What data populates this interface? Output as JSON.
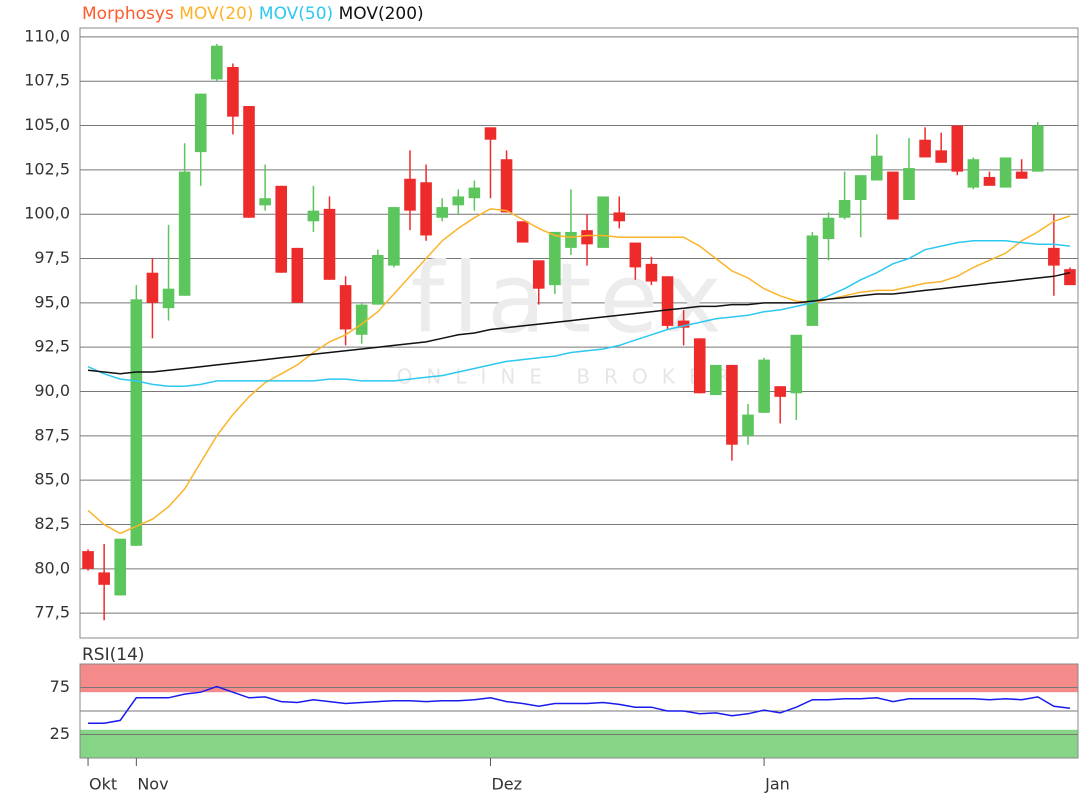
{
  "chart_data": [
    {
      "type": "candlestick",
      "watermark": [
        "flatex",
        "ONLINE BROKER"
      ],
      "ohlc": {
        "name": "Morphosys",
        "color": "#ff5b2d",
        "up_color": "#5cc55c",
        "down_color": "#ee2b2b",
        "open": [
          81.0,
          79.8,
          78.5,
          81.3,
          96.7,
          94.7,
          95.4,
          103.5,
          107.6,
          108.3,
          106.1,
          100.5,
          101.6,
          98.1,
          99.6,
          100.3,
          96.0,
          93.2,
          94.9,
          97.1,
          102.0,
          101.8,
          99.8,
          100.5,
          100.9,
          104.9,
          103.1,
          99.6,
          97.4,
          96.0,
          98.1,
          99.1,
          98.1,
          100.1,
          98.4,
          97.2,
          96.5,
          94.0,
          93.0,
          89.8,
          91.5,
          87.5,
          88.8,
          90.3,
          89.9,
          93.7,
          98.6,
          99.8,
          100.8,
          101.9,
          102.4,
          100.8,
          104.2,
          103.6,
          105.0,
          101.5,
          102.1,
          101.5,
          102.4,
          102.4,
          98.1,
          96.9
        ],
        "high": [
          81.1,
          81.4,
          81.7,
          96.0,
          97.5,
          99.4,
          104.0,
          106.8,
          109.6,
          108.5,
          106.1,
          102.8,
          101.6,
          98.1,
          101.6,
          101.0,
          96.5,
          95.0,
          98.0,
          100.4,
          103.6,
          102.8,
          100.9,
          101.4,
          101.9,
          104.9,
          103.6,
          99.6,
          97.4,
          99.0,
          101.4,
          100.0,
          101.0,
          101.0,
          98.4,
          97.6,
          96.5,
          94.6,
          93.0,
          91.5,
          91.5,
          89.3,
          91.9,
          90.3,
          93.2,
          99.0,
          100.1,
          102.4,
          102.2,
          104.5,
          102.4,
          104.3,
          104.9,
          104.6,
          105.0,
          103.2,
          102.4,
          103.2,
          103.1,
          105.2,
          100.0,
          97.0
        ],
        "low": [
          79.9,
          77.1,
          78.5,
          81.3,
          93.0,
          94.0,
          95.4,
          101.6,
          107.5,
          104.5,
          99.8,
          100.2,
          96.7,
          95.0,
          99.0,
          96.3,
          92.6,
          92.7,
          94.9,
          97.0,
          99.1,
          98.5,
          99.6,
          100.0,
          100.2,
          100.9,
          100.1,
          98.4,
          94.9,
          95.5,
          97.7,
          97.1,
          98.1,
          99.2,
          96.3,
          96.0,
          93.5,
          92.6,
          89.9,
          89.8,
          86.1,
          87.0,
          88.8,
          88.2,
          88.4,
          93.7,
          97.4,
          99.7,
          98.7,
          101.9,
          99.7,
          100.8,
          103.2,
          102.9,
          102.2,
          101.4,
          101.6,
          101.5,
          102.0,
          102.4,
          95.4,
          96.0
        ],
        "close": [
          80.0,
          79.1,
          81.7,
          95.2,
          95.0,
          95.8,
          102.4,
          106.8,
          109.5,
          105.5,
          99.8,
          100.9,
          96.7,
          95.0,
          100.2,
          96.3,
          93.5,
          94.9,
          97.7,
          100.4,
          100.2,
          98.8,
          100.4,
          101.0,
          101.5,
          104.2,
          100.1,
          98.4,
          95.8,
          99.0,
          99.0,
          98.3,
          101.0,
          99.6,
          97.0,
          96.2,
          93.7,
          93.6,
          89.9,
          91.5,
          87.0,
          88.7,
          91.8,
          89.7,
          93.2,
          98.8,
          99.8,
          100.8,
          102.2,
          103.3,
          99.7,
          102.6,
          103.2,
          102.9,
          102.4,
          103.1,
          101.6,
          103.2,
          102.0,
          105.0,
          97.1,
          96.0
        ]
      },
      "series": [
        {
          "name": "MOV(20)",
          "color": "#fbb42a",
          "values": [
            83.3,
            82.5,
            82.0,
            82.4,
            82.8,
            83.5,
            84.5,
            86.0,
            87.5,
            88.7,
            89.7,
            90.5,
            91.0,
            91.5,
            92.2,
            92.8,
            93.2,
            93.8,
            94.5,
            95.5,
            96.5,
            97.5,
            98.5,
            99.2,
            99.8,
            100.3,
            100.2,
            99.7,
            99.2,
            98.8,
            98.7,
            98.8,
            98.8,
            98.7,
            98.7,
            98.7,
            98.7,
            98.7,
            98.2,
            97.5,
            96.8,
            96.4,
            95.8,
            95.4,
            95.1,
            95.0,
            95.2,
            95.4,
            95.6,
            95.7,
            95.7,
            95.9,
            96.1,
            96.2,
            96.5,
            97.0,
            97.4,
            97.8,
            98.5,
            99.0,
            99.6,
            99.9
          ]
        },
        {
          "name": "MOV(50)",
          "color": "#2cc8f0",
          "values": [
            91.4,
            91.0,
            90.7,
            90.6,
            90.4,
            90.3,
            90.3,
            90.4,
            90.6,
            90.6,
            90.6,
            90.6,
            90.6,
            90.6,
            90.6,
            90.7,
            90.7,
            90.6,
            90.6,
            90.6,
            90.7,
            90.8,
            90.9,
            91.1,
            91.3,
            91.5,
            91.7,
            91.8,
            91.9,
            92.0,
            92.2,
            92.3,
            92.4,
            92.6,
            92.9,
            93.2,
            93.5,
            93.7,
            93.9,
            94.1,
            94.2,
            94.3,
            94.5,
            94.6,
            94.8,
            95.0,
            95.4,
            95.8,
            96.3,
            96.7,
            97.2,
            97.5,
            98.0,
            98.2,
            98.4,
            98.5,
            98.5,
            98.5,
            98.4,
            98.3,
            98.3,
            98.2
          ]
        },
        {
          "name": "MOV(200)",
          "color": "#111111",
          "values": [
            91.2,
            91.1,
            91.0,
            91.1,
            91.1,
            91.2,
            91.3,
            91.4,
            91.5,
            91.6,
            91.7,
            91.8,
            91.9,
            92.0,
            92.1,
            92.2,
            92.3,
            92.4,
            92.5,
            92.6,
            92.7,
            92.8,
            93.0,
            93.2,
            93.3,
            93.5,
            93.6,
            93.7,
            93.8,
            93.9,
            94.0,
            94.1,
            94.2,
            94.3,
            94.4,
            94.5,
            94.6,
            94.7,
            94.8,
            94.8,
            94.9,
            94.9,
            95.0,
            95.0,
            95.0,
            95.1,
            95.2,
            95.3,
            95.4,
            95.5,
            95.5,
            95.6,
            95.7,
            95.8,
            95.9,
            96.0,
            96.1,
            96.2,
            96.3,
            96.4,
            96.5,
            96.7
          ]
        }
      ],
      "ylim": [
        76.1,
        110.5
      ],
      "yticks": [
        {
          "value": 77.5,
          "label": "77,5"
        },
        {
          "value": 80,
          "label": "80,0"
        },
        {
          "value": 82.5,
          "label": "82,5"
        },
        {
          "value": 85,
          "label": "85,0"
        },
        {
          "value": 87.5,
          "label": "87,5"
        },
        {
          "value": 90,
          "label": "90,0"
        },
        {
          "value": 92.5,
          "label": "92,5"
        },
        {
          "value": 95,
          "label": "95,0"
        },
        {
          "value": 97.5,
          "label": "97,5"
        },
        {
          "value": 100,
          "label": "100,0"
        },
        {
          "value": 102.5,
          "label": "102,5"
        },
        {
          "value": 105,
          "label": "105,0"
        },
        {
          "value": 107.5,
          "label": "107,5"
        },
        {
          "value": 110,
          "label": "110,0"
        }
      ],
      "grid": true
    },
    {
      "type": "line",
      "categories": [
        "Okt",
        null,
        null,
        "Nov",
        null,
        null,
        null,
        null,
        null,
        null,
        null,
        null,
        null,
        null,
        null,
        null,
        null,
        null,
        null,
        null,
        null,
        null,
        null,
        null,
        null,
        "Dez",
        null,
        null,
        null,
        null,
        null,
        null,
        null,
        null,
        null,
        null,
        null,
        null,
        null,
        null,
        null,
        null,
        "Jan",
        null,
        null,
        null,
        null,
        null,
        null,
        null,
        null,
        null,
        null,
        null,
        null,
        null,
        null,
        null,
        null,
        null,
        null,
        null
      ],
      "series": [
        {
          "name": "RSI(14)",
          "color": "#1a1aee",
          "values": [
            37,
            37,
            40,
            64,
            64,
            64,
            68,
            70,
            76,
            70,
            64,
            65,
            60,
            59,
            62,
            60,
            58,
            59,
            60,
            61,
            61,
            60,
            61,
            61,
            62,
            64,
            60,
            58,
            55,
            58,
            58,
            58,
            59,
            57,
            54,
            54,
            50,
            50,
            47,
            48,
            45,
            47,
            51,
            48,
            54,
            62,
            62,
            63,
            63,
            64,
            60,
            63,
            63,
            63,
            63,
            63,
            62,
            63,
            62,
            65,
            55,
            53
          ]
        }
      ],
      "ylim": [
        0,
        100
      ],
      "yticks": [
        25,
        75
      ],
      "gridlines": [
        50
      ],
      "bands": [
        {
          "from": 70,
          "to": 100,
          "color": "#f58a8a"
        },
        {
          "from": 0,
          "to": 30,
          "color": "#86d486"
        }
      ],
      "grid": true
    }
  ]
}
